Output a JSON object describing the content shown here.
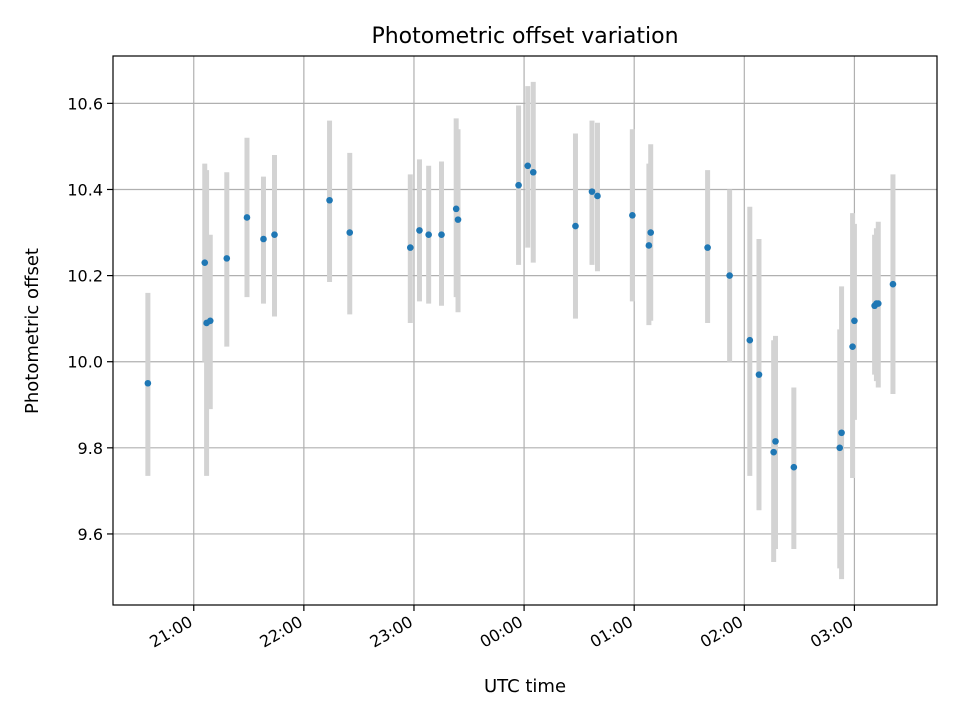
{
  "chart_data": {
    "type": "scatter",
    "title": "Photometric offset variation",
    "xlabel": "UTC time",
    "ylabel": "Photometric offset",
    "x_unit": "UTC time (hh:mm)",
    "x_ticks": [
      "21:00",
      "22:00",
      "23:00",
      "00:00",
      "01:00",
      "02:00",
      "03:00"
    ],
    "y_ticks": [
      "9.6",
      "9.8",
      "10.0",
      "10.2",
      "10.4",
      "10.6"
    ],
    "xlim": [
      "20:16",
      "03:45"
    ],
    "ylim": [
      9.435,
      10.71
    ],
    "grid": true,
    "colors": {
      "point": "#1f77b4",
      "errorbar": "#d3d3d3",
      "grid": "#b0b0b0"
    },
    "points": [
      {
        "x": "20:35",
        "y": 9.95,
        "lo": 9.735,
        "hi": 10.16
      },
      {
        "x": "21:06",
        "y": 10.23,
        "lo": 10.0,
        "hi": 10.46
      },
      {
        "x": "21:07",
        "y": 10.09,
        "lo": 9.735,
        "hi": 10.445
      },
      {
        "x": "21:09",
        "y": 10.095,
        "lo": 9.89,
        "hi": 10.295
      },
      {
        "x": "21:18",
        "y": 10.24,
        "lo": 10.035,
        "hi": 10.44
      },
      {
        "x": "21:29",
        "y": 10.335,
        "lo": 10.15,
        "hi": 10.52
      },
      {
        "x": "21:38",
        "y": 10.285,
        "lo": 10.135,
        "hi": 10.43
      },
      {
        "x": "21:44",
        "y": 10.295,
        "lo": 10.105,
        "hi": 10.48
      },
      {
        "x": "22:14",
        "y": 10.375,
        "lo": 10.185,
        "hi": 10.56
      },
      {
        "x": "22:25",
        "y": 10.3,
        "lo": 10.11,
        "hi": 10.485
      },
      {
        "x": "22:58",
        "y": 10.265,
        "lo": 10.09,
        "hi": 10.435
      },
      {
        "x": "23:03",
        "y": 10.305,
        "lo": 10.14,
        "hi": 10.47
      },
      {
        "x": "23:08",
        "y": 10.295,
        "lo": 10.135,
        "hi": 10.455
      },
      {
        "x": "23:15",
        "y": 10.295,
        "lo": 10.13,
        "hi": 10.465
      },
      {
        "x": "23:23",
        "y": 10.355,
        "lo": 10.15,
        "hi": 10.565
      },
      {
        "x": "23:24",
        "y": 10.33,
        "lo": 10.115,
        "hi": 10.54
      },
      {
        "x": "23:57",
        "y": 10.41,
        "lo": 10.225,
        "hi": 10.595
      },
      {
        "x": "00:02",
        "y": 10.455,
        "lo": 10.265,
        "hi": 10.64
      },
      {
        "x": "00:05",
        "y": 10.44,
        "lo": 10.23,
        "hi": 10.65
      },
      {
        "x": "00:28",
        "y": 10.315,
        "lo": 10.1,
        "hi": 10.53
      },
      {
        "x": "00:37",
        "y": 10.395,
        "lo": 10.225,
        "hi": 10.56
      },
      {
        "x": "00:40",
        "y": 10.385,
        "lo": 10.21,
        "hi": 10.555
      },
      {
        "x": "00:59",
        "y": 10.34,
        "lo": 10.14,
        "hi": 10.54
      },
      {
        "x": "01:08",
        "y": 10.27,
        "lo": 10.085,
        "hi": 10.46
      },
      {
        "x": "01:09",
        "y": 10.3,
        "lo": 10.095,
        "hi": 10.505
      },
      {
        "x": "01:40",
        "y": 10.265,
        "lo": 10.09,
        "hi": 10.445
      },
      {
        "x": "01:52",
        "y": 10.2,
        "lo": 10.0,
        "hi": 10.4
      },
      {
        "x": "02:03",
        "y": 10.05,
        "lo": 9.735,
        "hi": 10.36
      },
      {
        "x": "02:08",
        "y": 9.97,
        "lo": 9.655,
        "hi": 10.285
      },
      {
        "x": "02:16",
        "y": 9.79,
        "lo": 9.535,
        "hi": 10.05
      },
      {
        "x": "02:17",
        "y": 9.815,
        "lo": 9.565,
        "hi": 10.06
      },
      {
        "x": "02:27",
        "y": 9.755,
        "lo": 9.565,
        "hi": 9.94
      },
      {
        "x": "02:52",
        "y": 9.8,
        "lo": 9.52,
        "hi": 10.075
      },
      {
        "x": "02:53",
        "y": 9.835,
        "lo": 9.495,
        "hi": 10.175
      },
      {
        "x": "02:59",
        "y": 10.035,
        "lo": 9.73,
        "hi": 10.345
      },
      {
        "x": "03:00",
        "y": 10.095,
        "lo": 9.865,
        "hi": 10.32
      },
      {
        "x": "03:11",
        "y": 10.13,
        "lo": 9.97,
        "hi": 10.295
      },
      {
        "x": "03:12",
        "y": 10.135,
        "lo": 9.955,
        "hi": 10.31
      },
      {
        "x": "03:13",
        "y": 10.135,
        "lo": 9.94,
        "hi": 10.325
      },
      {
        "x": "03:21",
        "y": 10.18,
        "lo": 9.925,
        "hi": 10.435
      }
    ]
  }
}
